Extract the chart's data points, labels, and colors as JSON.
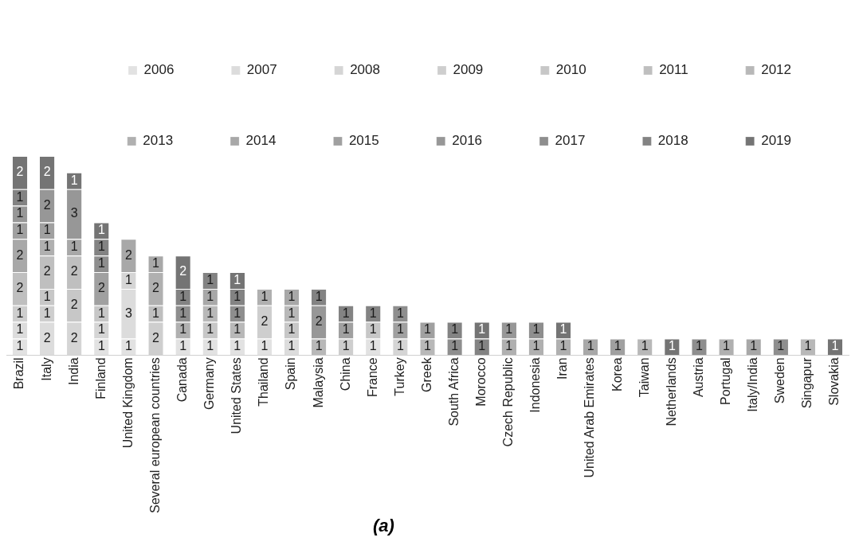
{
  "chart_data": {
    "type": "bar",
    "stacked": true,
    "data_labels": true,
    "legend": "top right",
    "grid": false,
    "categories": [
      "Brazil",
      "Italy",
      "India",
      "Finland",
      "United Kingdom",
      "Several european countries",
      "Canada",
      "Germany",
      "United States",
      "Thailand",
      "Spain",
      "Malaysia",
      "China",
      "France",
      "Turkey",
      "Greek",
      "South Africa",
      "Morocco",
      "Czech Republic",
      "Indonesia",
      "Iran",
      "United Arab Emirates",
      "Korea",
      "Taiwan",
      "Netherlands",
      "Austria",
      "Portugal",
      "Italy/India",
      "Sweden",
      "Singapur",
      "Slovakia"
    ],
    "series": [
      {
        "name": "2006",
        "color": "#e2e2e2",
        "values": [
          1,
          null,
          null,
          1,
          1,
          null,
          1,
          1,
          1,
          1,
          null,
          null,
          null,
          1,
          null,
          null,
          null,
          null,
          null,
          null,
          null,
          null,
          null,
          null,
          null,
          null,
          null,
          null,
          null,
          null,
          null
        ]
      },
      {
        "name": "2007",
        "color": "#dcdcdc",
        "values": [
          1,
          2,
          null,
          null,
          3,
          null,
          null,
          null,
          null,
          null,
          1,
          null,
          null,
          null,
          null,
          null,
          null,
          null,
          null,
          null,
          null,
          null,
          null,
          null,
          null,
          null,
          null,
          null,
          null,
          null,
          null
        ]
      },
      {
        "name": "2008",
        "color": "#d5d5d5",
        "values": [
          null,
          null,
          2,
          1,
          1,
          null,
          null,
          null,
          null,
          null,
          null,
          null,
          null,
          null,
          1,
          null,
          null,
          null,
          null,
          null,
          null,
          null,
          null,
          null,
          null,
          null,
          null,
          null,
          null,
          null,
          null
        ]
      },
      {
        "name": "2009",
        "color": "#cecece",
        "values": [
          1,
          1,
          null,
          null,
          null,
          2,
          null,
          null,
          null,
          2,
          null,
          null,
          1,
          null,
          null,
          null,
          null,
          null,
          null,
          null,
          null,
          null,
          null,
          null,
          null,
          null,
          null,
          null,
          null,
          null,
          null
        ]
      },
      {
        "name": "2010",
        "color": "#c7c7c7",
        "values": [
          null,
          1,
          2,
          1,
          null,
          null,
          null,
          1,
          null,
          null,
          1,
          null,
          null,
          1,
          null,
          null,
          null,
          null,
          null,
          null,
          null,
          null,
          null,
          null,
          null,
          null,
          null,
          null,
          null,
          null,
          null
        ]
      },
      {
        "name": "2011",
        "color": "#bfbfbf",
        "values": [
          2,
          2,
          2,
          null,
          null,
          1,
          null,
          null,
          null,
          null,
          null,
          null,
          null,
          null,
          null,
          null,
          null,
          null,
          null,
          null,
          null,
          null,
          null,
          null,
          null,
          null,
          null,
          null,
          null,
          null,
          null
        ]
      },
      {
        "name": "2012",
        "color": "#b8b8b8",
        "values": [
          null,
          null,
          null,
          null,
          null,
          null,
          null,
          1,
          1,
          null,
          1,
          1,
          null,
          null,
          null,
          1,
          null,
          null,
          null,
          null,
          null,
          null,
          null,
          1,
          null,
          null,
          null,
          null,
          null,
          1,
          null
        ]
      },
      {
        "name": "2013",
        "color": "#b0b0b0",
        "values": [
          null,
          1,
          null,
          null,
          null,
          2,
          1,
          null,
          null,
          1,
          null,
          null,
          null,
          null,
          null,
          null,
          null,
          null,
          1,
          1,
          1,
          null,
          null,
          null,
          null,
          null,
          1,
          null,
          null,
          null,
          null
        ]
      },
      {
        "name": "2014",
        "color": "#a8a8a8",
        "values": [
          2,
          null,
          1,
          null,
          2,
          1,
          null,
          1,
          null,
          null,
          1,
          null,
          null,
          null,
          null,
          null,
          null,
          null,
          null,
          null,
          null,
          1,
          null,
          null,
          null,
          null,
          null,
          1,
          null,
          null,
          null
        ]
      },
      {
        "name": "2015",
        "color": "#a0a0a0",
        "values": [
          1,
          1,
          null,
          2,
          null,
          null,
          null,
          null,
          null,
          null,
          null,
          null,
          1,
          null,
          1,
          1,
          null,
          null,
          null,
          null,
          null,
          null,
          1,
          null,
          null,
          null,
          null,
          null,
          null,
          null,
          null
        ]
      },
      {
        "name": "2016",
        "color": "#979797",
        "values": [
          1,
          2,
          3,
          null,
          null,
          null,
          null,
          null,
          null,
          null,
          null,
          2,
          null,
          null,
          null,
          null,
          null,
          null,
          1,
          null,
          null,
          null,
          null,
          null,
          null,
          null,
          null,
          null,
          null,
          null,
          null
        ]
      },
      {
        "name": "2017",
        "color": "#8e8e8e",
        "values": [
          null,
          null,
          null,
          1,
          null,
          null,
          1,
          null,
          1,
          null,
          null,
          null,
          null,
          null,
          1,
          null,
          1,
          null,
          null,
          1,
          null,
          null,
          null,
          null,
          null,
          1,
          null,
          null,
          1,
          null,
          null
        ]
      },
      {
        "name": "2018",
        "color": "#838383",
        "values": [
          1,
          null,
          null,
          1,
          null,
          null,
          1,
          1,
          1,
          null,
          null,
          1,
          1,
          1,
          null,
          null,
          1,
          1,
          null,
          null,
          null,
          null,
          null,
          null,
          null,
          null,
          null,
          null,
          null,
          null,
          null
        ]
      },
      {
        "name": "2019",
        "color": "#747474",
        "values": [
          2,
          2,
          1,
          1,
          null,
          null,
          2,
          null,
          1,
          null,
          null,
          null,
          null,
          null,
          null,
          null,
          null,
          1,
          null,
          null,
          1,
          null,
          null,
          null,
          1,
          null,
          null,
          null,
          null,
          null,
          1
        ]
      }
    ],
    "annotations": [
      "(a)"
    ]
  }
}
